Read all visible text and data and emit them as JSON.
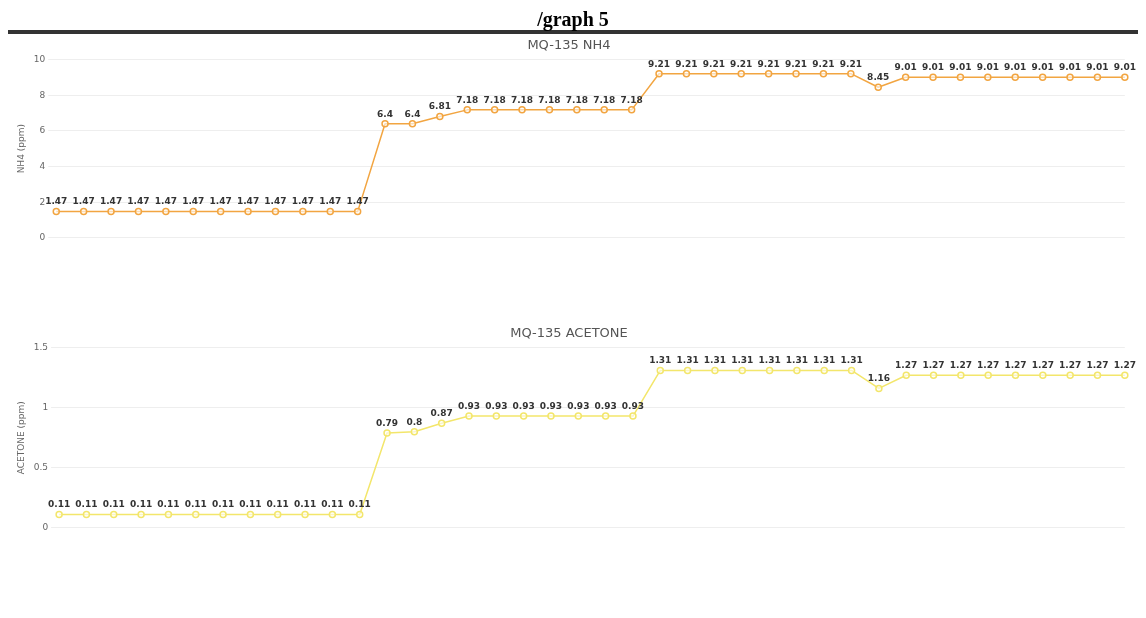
{
  "chart_data": [
    {
      "type": "line",
      "title": "MQ-135 NH4",
      "ylabel": "NH4 (ppm)",
      "annotations": [
        "/graph 5"
      ],
      "categories": [
        null,
        null,
        null,
        null,
        null,
        null,
        null,
        null,
        null,
        null,
        null,
        null,
        null,
        null,
        null,
        null,
        null,
        null,
        null,
        null,
        null,
        null,
        null,
        null,
        null,
        null,
        null,
        null,
        null,
        null,
        null,
        null,
        null,
        null,
        null,
        null,
        null,
        null,
        null,
        null
      ],
      "series": [
        {
          "color": "#f2a541",
          "values": [
            1.47,
            1.47,
            1.47,
            1.47,
            1.47,
            1.47,
            1.47,
            1.47,
            1.47,
            1.47,
            1.47,
            1.47,
            6.4,
            6.4,
            6.81,
            7.18,
            7.18,
            7.18,
            7.18,
            7.18,
            7.18,
            7.18,
            9.21,
            9.21,
            9.21,
            9.21,
            9.21,
            9.21,
            9.21,
            9.21,
            8.45,
            9.01,
            9.01,
            9.01,
            9.01,
            9.01,
            9.01,
            9.01,
            9.01,
            9.01
          ]
        }
      ],
      "ylim": [
        0,
        10
      ],
      "yticks": [
        0,
        2,
        4,
        6,
        8,
        10
      ],
      "grid": "y",
      "marker": "circle",
      "data_labels": true,
      "legend": false
    },
    {
      "type": "line",
      "title": "MQ-135 ACETONE",
      "ylabel": "ACETONE (ppm)",
      "categories": [
        null,
        null,
        null,
        null,
        null,
        null,
        null,
        null,
        null,
        null,
        null,
        null,
        null,
        null,
        null,
        null,
        null,
        null,
        null,
        null,
        null,
        null,
        null,
        null,
        null,
        null,
        null,
        null,
        null,
        null,
        null,
        null,
        null,
        null,
        null,
        null,
        null,
        null,
        null,
        null
      ],
      "series": [
        {
          "color": "#f3e66b",
          "values": [
            0.11,
            0.11,
            0.11,
            0.11,
            0.11,
            0.11,
            0.11,
            0.11,
            0.11,
            0.11,
            0.11,
            0.11,
            0.79,
            0.8,
            0.87,
            0.93,
            0.93,
            0.93,
            0.93,
            0.93,
            0.93,
            0.93,
            1.31,
            1.31,
            1.31,
            1.31,
            1.31,
            1.31,
            1.31,
            1.31,
            1.16,
            1.27,
            1.27,
            1.27,
            1.27,
            1.27,
            1.27,
            1.27,
            1.27,
            1.27
          ]
        }
      ],
      "ylim": [
        0,
        1.5
      ],
      "yticks": [
        0,
        0.5,
        1,
        1.5
      ],
      "grid": "y",
      "marker": "circle",
      "data_labels": true,
      "legend": false
    }
  ]
}
